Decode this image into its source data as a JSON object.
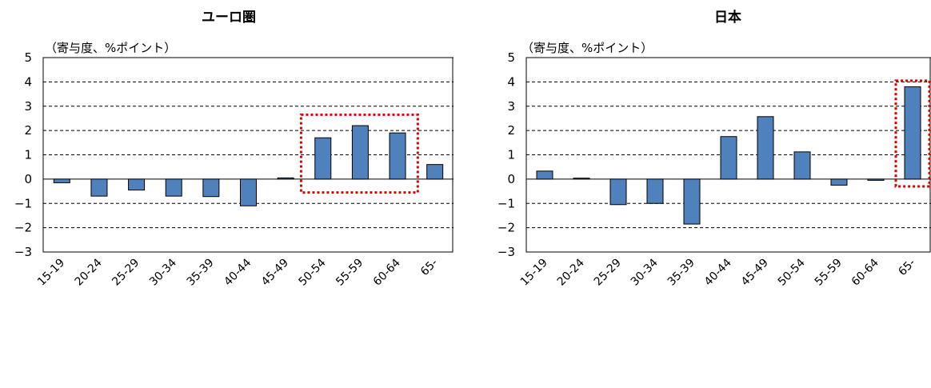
{
  "chart_data": [
    {
      "type": "bar",
      "title": "ユーロ圏",
      "unit_label": "（寄与度、%ポイント）",
      "categories": [
        "15-19",
        "20-24",
        "25-29",
        "30-34",
        "35-39",
        "40-44",
        "45-49",
        "50-54",
        "55-59",
        "60-64",
        "65-"
      ],
      "values": [
        -0.15,
        -0.7,
        -0.45,
        -0.7,
        -0.72,
        -1.1,
        0.05,
        1.7,
        2.2,
        1.9,
        0.6
      ],
      "ylim": [
        -3,
        5
      ],
      "yticks": [
        "5",
        "4",
        "3",
        "2",
        "1",
        "0",
        "−1",
        "−2",
        "−3"
      ],
      "grid": true,
      "highlight": {
        "from_category": "50-54",
        "to_category": "60-64",
        "y_range": [
          -0.55,
          2.65
        ],
        "color": "#e00000"
      },
      "bar_color": "#4f81bd"
    },
    {
      "type": "bar",
      "title": "日本",
      "unit_label": "（寄与度、%ポイント）",
      "categories": [
        "15-19",
        "20-24",
        "25-29",
        "30-34",
        "35-39",
        "40-44",
        "45-49",
        "50-54",
        "55-59",
        "60-64",
        "65-"
      ],
      "values": [
        0.33,
        0.04,
        -1.05,
        -1.0,
        -1.85,
        1.75,
        2.57,
        1.12,
        -0.25,
        -0.05,
        3.8
      ],
      "ylim": [
        -3,
        5
      ],
      "yticks": [
        "5",
        "4",
        "3",
        "2",
        "1",
        "0",
        "−1",
        "−2",
        "−3"
      ],
      "grid": true,
      "highlight": {
        "from_category": "65-",
        "to_category": "65-",
        "y_range": [
          -0.3,
          4.05
        ],
        "color": "#e00000"
      },
      "bar_color": "#4f81bd"
    }
  ]
}
